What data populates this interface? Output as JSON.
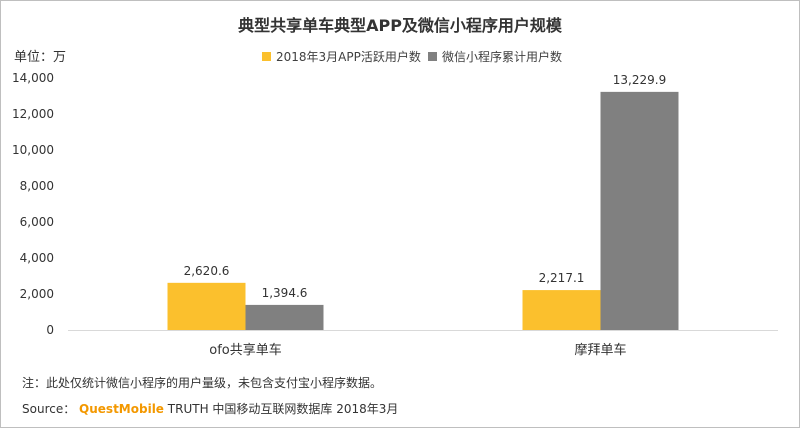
{
  "chart_data": {
    "type": "bar",
    "title": "典型共享单车典型APP及微信小程序用户规模",
    "unit_label": "单位：万",
    "categories": [
      "ofo共享单车",
      "摩拜单车"
    ],
    "series": [
      {
        "name": "2018年3月APP活跃用户数",
        "color": "#fbc02d",
        "values": [
          2620.6,
          2217.1
        ],
        "labels": [
          "2,620.6",
          "2,217.1"
        ]
      },
      {
        "name": "微信小程序累计用户数",
        "color": "#808080",
        "values": [
          1394.6,
          13229.9
        ],
        "labels": [
          "1,394.6",
          "13,229.9"
        ]
      }
    ],
    "ylim": [
      0,
      14000
    ],
    "yticks": [
      0,
      2000,
      4000,
      6000,
      8000,
      10000,
      12000,
      14000
    ],
    "ytick_labels": [
      "0",
      "2,000",
      "4,000",
      "6,000",
      "8,000",
      "10,000",
      "12,000",
      "14,000"
    ],
    "grid": false,
    "legend_position": "top-right"
  },
  "footer": {
    "note": "注：此处仅统计微信小程序的用户量级，未包含支付宝小程序数据。",
    "source_label": "Source：",
    "source_brand": "QuestMobile",
    "source_rest": "TRUTH 中国移动互联网数据库 2018年3月"
  }
}
